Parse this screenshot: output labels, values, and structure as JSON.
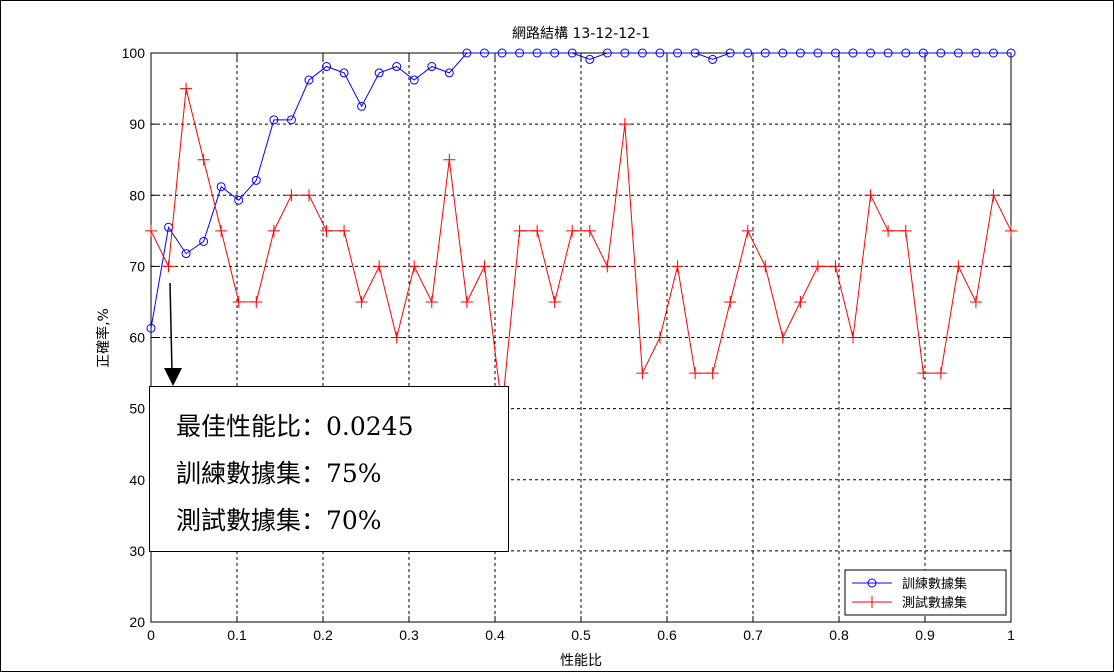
{
  "chart_data": {
    "type": "line",
    "title": "網路結構 13-12-12-1",
    "xlabel": "性能比",
    "ylabel": "正確率,%",
    "xlim": [
      0,
      1
    ],
    "ylim": [
      20,
      100
    ],
    "xticks": [
      "0",
      "0.1",
      "0.2",
      "0.3",
      "0.4",
      "0.5",
      "0.6",
      "0.7",
      "0.8",
      "0.9",
      "1"
    ],
    "yticks": [
      "20",
      "30",
      "40",
      "50",
      "60",
      "70",
      "80",
      "90",
      "100"
    ],
    "grid": true,
    "legend_position": "bottom-right",
    "x": [
      0,
      0.0204,
      0.0408,
      0.0612,
      0.0816,
      0.102,
      0.1224,
      0.1429,
      0.1633,
      0.1837,
      0.2041,
      0.2245,
      0.2449,
      0.2653,
      0.2857,
      0.3061,
      0.3265,
      0.3469,
      0.3673,
      0.3878,
      0.4082,
      0.4286,
      0.449,
      0.4694,
      0.4898,
      0.5102,
      0.5306,
      0.551,
      0.5714,
      0.5918,
      0.6122,
      0.6327,
      0.6531,
      0.6735,
      0.6939,
      0.7143,
      0.7347,
      0.7551,
      0.7755,
      0.7959,
      0.8163,
      0.8367,
      0.8571,
      0.8776,
      0.898,
      0.9184,
      0.9388,
      0.9592,
      0.9796,
      1.0
    ],
    "series": [
      {
        "name": "訓練數據集",
        "color": "#0000ff",
        "marker": "circle",
        "values": [
          61.3,
          75.5,
          71.8,
          73.5,
          81.2,
          79.3,
          82.1,
          90.6,
          90.6,
          96.2,
          98.1,
          97.2,
          92.5,
          97.2,
          98.1,
          96.2,
          98.1,
          97.2,
          100,
          100,
          100,
          100,
          100,
          100,
          100,
          99.1,
          100,
          100,
          100,
          100,
          100,
          100,
          99.1,
          100,
          100,
          100,
          100,
          100,
          100,
          100,
          100,
          100,
          100,
          100,
          100,
          100,
          100,
          100,
          100,
          100
        ]
      },
      {
        "name": "測試數據集",
        "color": "#ff0000",
        "marker": "plus",
        "values": [
          75,
          70,
          95,
          85,
          75,
          65,
          65,
          75,
          80,
          80,
          75,
          75,
          65,
          70,
          60,
          70,
          65,
          85,
          65,
          70,
          50,
          75,
          75,
          65,
          75,
          75,
          70,
          90,
          55,
          60,
          70,
          55,
          55,
          65,
          75,
          70,
          60,
          65,
          70,
          70,
          60,
          80,
          75,
          75,
          55,
          55,
          70,
          65,
          80,
          75
        ]
      }
    ]
  },
  "annotation": {
    "line1": "最佳性能比：0.0245",
    "line2": "訓練數據集：75%",
    "line3": "測試數據集：70%"
  }
}
